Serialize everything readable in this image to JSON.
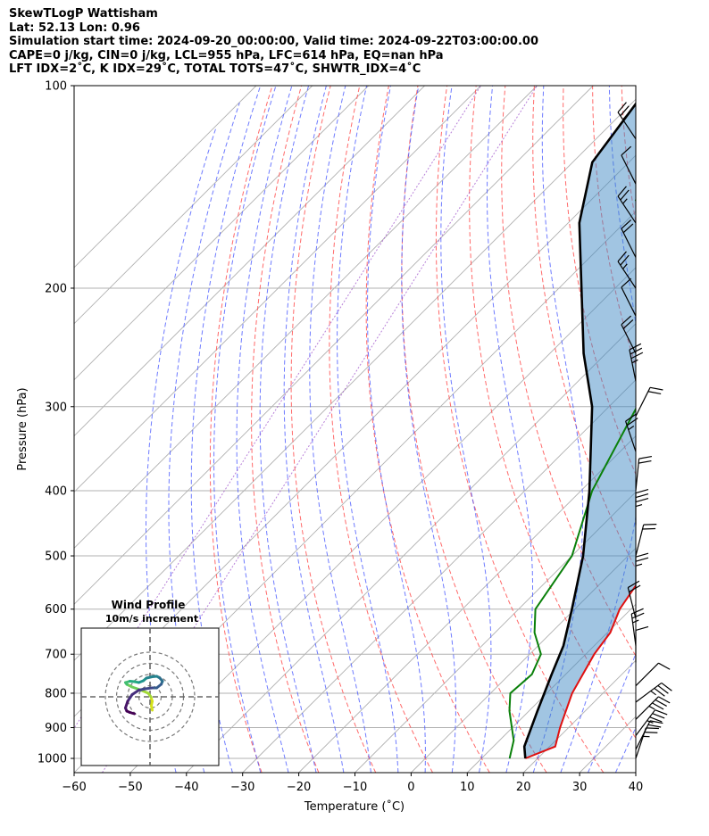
{
  "header": {
    "line1": "SkewTLogP Wattisham",
    "line2": "Lat: 52.13   Lon: 0.96",
    "line3": "Simulation start time: 2024-09-20_00:00:00, Valid time: 2024-09-22T03:00:00.00",
    "line4": "CAPE=0 j/kg, CIN=0 j/kg, LCL=955 hPa, LFC=614 hPa, EQ=nan hPa",
    "line5": "LFT IDX=2˚C, K IDX=29˚C, TOTAL TOTS=47˚C, SHWTR_IDX=4˚C"
  },
  "chart_data": {
    "type": "line",
    "subtype": "skew-t log-p",
    "xlabel": "Temperature (˚C)",
    "ylabel": "Pressure (hPa)",
    "xlim": [
      -60,
      40
    ],
    "ylim": [
      1050,
      100
    ],
    "yscale": "log",
    "x_ticks": [
      "−60",
      "−50",
      "−40",
      "−30",
      "−20",
      "−10",
      "0",
      "10",
      "20",
      "30",
      "40"
    ],
    "y_ticks": [
      "100",
      "200",
      "300",
      "400",
      "500",
      "600",
      "700",
      "800",
      "900",
      "1000"
    ],
    "grid": true,
    "series": [
      {
        "role": "temperature",
        "color": "#e01010",
        "points": [
          [
            17.8,
            1000
          ],
          [
            21.0,
            960
          ],
          [
            18.5,
            900
          ],
          [
            14.5,
            800
          ],
          [
            11.5,
            700
          ],
          [
            10.5,
            650
          ],
          [
            8.0,
            600
          ],
          [
            5.0,
            500
          ],
          [
            -1.0,
            400
          ],
          [
            -8.0,
            300
          ],
          [
            -14.0,
            250
          ],
          [
            -16.5,
            235
          ],
          [
            -17.0,
            220
          ],
          [
            -20.0,
            200
          ],
          [
            -26.0,
            180
          ],
          [
            -28.0,
            170
          ],
          [
            -32.0,
            160
          ],
          [
            -38.0,
            140
          ],
          [
            -46.0,
            120
          ],
          [
            -52.0,
            100
          ]
        ]
      },
      {
        "role": "dewpoint",
        "color": "#0a800a",
        "points": [
          [
            15.0,
            1000
          ],
          [
            12.5,
            940
          ],
          [
            6.5,
            850
          ],
          [
            3.5,
            800
          ],
          [
            4.0,
            750
          ],
          [
            2.0,
            700
          ],
          [
            -3.0,
            650
          ],
          [
            -7.0,
            600
          ],
          [
            -10.0,
            500
          ],
          [
            -18.0,
            400
          ],
          [
            -25.0,
            300
          ],
          [
            -33.0,
            250
          ],
          [
            -38.0,
            230
          ],
          [
            -42.0,
            210
          ],
          [
            -45.0,
            195
          ],
          [
            -47.0,
            185
          ],
          [
            -55.0,
            165
          ],
          [
            -58.5,
            155
          ],
          [
            -62.0,
            148
          ],
          [
            -62.0,
            130
          ],
          [
            -66.0,
            100
          ]
        ]
      },
      {
        "role": "parcel",
        "color": "#000000",
        "points": [
          [
            17.8,
            1000
          ],
          [
            15.5,
            960
          ],
          [
            11.5,
            850
          ],
          [
            7.5,
            750
          ],
          [
            4.5,
            680
          ],
          [
            -0.5,
            600
          ],
          [
            -8.0,
            500
          ],
          [
            -18.5,
            400
          ],
          [
            -33.0,
            300
          ],
          [
            -44.0,
            250
          ],
          [
            -56.0,
            200
          ],
          [
            -68.0,
            160
          ],
          [
            -76.5,
            130
          ],
          [
            -80.0,
            100
          ]
        ]
      }
    ],
    "wind_barbs_kts": [
      {
        "p": 1000,
        "u": -5,
        "v": -15
      },
      {
        "p": 970,
        "u": -10,
        "v": -20
      },
      {
        "p": 925,
        "u": -15,
        "v": -20
      },
      {
        "p": 875,
        "u": -20,
        "v": -20
      },
      {
        "p": 825,
        "u": -20,
        "v": -15
      },
      {
        "p": 780,
        "u": -10,
        "v": -10
      },
      {
        "p": 720,
        "u": 0,
        "v": -10
      },
      {
        "p": 680,
        "u": 2,
        "v": -15
      },
      {
        "p": 620,
        "u": 5,
        "v": -20
      },
      {
        "p": 560,
        "u": 0,
        "v": -15
      },
      {
        "p": 500,
        "u": -5,
        "v": -20
      },
      {
        "p": 450,
        "u": 0,
        "v": -25
      },
      {
        "p": 400,
        "u": -2,
        "v": -20
      },
      {
        "p": 350,
        "u": 5,
        "v": -15
      },
      {
        "p": 310,
        "u": -10,
        "v": -20
      },
      {
        "p": 275,
        "u": 5,
        "v": -25
      },
      {
        "p": 250,
        "u": 10,
        "v": -20
      },
      {
        "p": 220,
        "u": 5,
        "v": -10
      },
      {
        "p": 200,
        "u": 10,
        "v": -15
      },
      {
        "p": 180,
        "u": 10,
        "v": -20
      },
      {
        "p": 160,
        "u": 10,
        "v": -15
      },
      {
        "p": 140,
        "u": 5,
        "v": -10
      },
      {
        "p": 120,
        "u": 10,
        "v": -15
      }
    ],
    "inset": {
      "title": "Wind Profile",
      "subtitle": "10m/s increment",
      "hodograph": [
        [
          0.5,
          -3
        ],
        [
          0.3,
          -2
        ],
        [
          0.5,
          -1
        ],
        [
          0.2,
          0
        ],
        [
          -0.4,
          0.8
        ],
        [
          -2,
          1.5
        ],
        [
          -4,
          2.2
        ],
        [
          -5.2,
          2.8
        ],
        [
          -5.5,
          3.2
        ],
        [
          -4.5,
          3.5
        ],
        [
          -3.5,
          3.4
        ],
        [
          -2.5,
          3.2
        ],
        [
          -1.5,
          3.6
        ],
        [
          -0.8,
          4.2
        ],
        [
          0.5,
          4.5
        ],
        [
          1.5,
          4.6
        ],
        [
          2.2,
          4.2
        ],
        [
          2.8,
          3.5
        ],
        [
          2.5,
          2.8
        ],
        [
          1.5,
          2.0
        ],
        [
          0.5,
          2.0
        ],
        [
          -1.0,
          1.8
        ],
        [
          -2.5,
          1.5
        ],
        [
          -4.0,
          0.5
        ],
        [
          -5.0,
          -1.0
        ],
        [
          -5.5,
          -2.5
        ],
        [
          -5.2,
          -3.2
        ],
        [
          -4.5,
          -3.5
        ],
        [
          -3.5,
          -3.8
        ]
      ]
    }
  }
}
